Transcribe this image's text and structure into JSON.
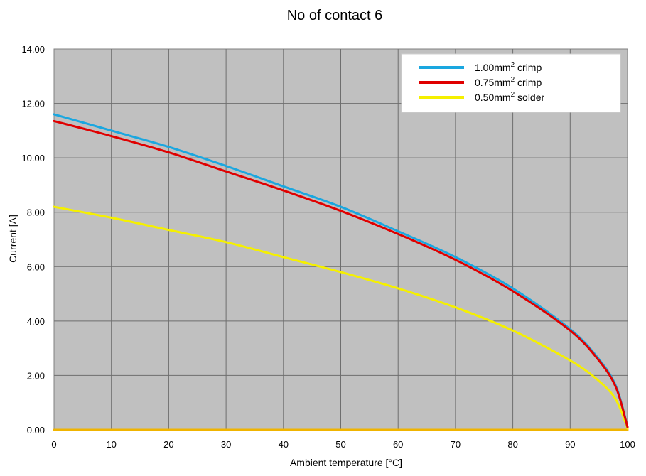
{
  "chart_data": {
    "type": "line",
    "title": "No of contact 6",
    "xlabel": "Ambient temperature [°C]",
    "ylabel": "Current [A]",
    "xlim": [
      0,
      100
    ],
    "ylim": [
      0,
      14
    ],
    "x_ticks": [
      "0",
      "10",
      "20",
      "30",
      "40",
      "50",
      "60",
      "70",
      "80",
      "90",
      "100"
    ],
    "y_ticks": [
      "0.00",
      "2.00",
      "4.00",
      "6.00",
      "8.00",
      "10.00",
      "12.00",
      "14.00"
    ],
    "grid": true,
    "legend_position": "top-right",
    "plot_background": "#c0c0c0",
    "x": [
      0,
      10,
      20,
      30,
      40,
      50,
      60,
      70,
      80,
      90,
      95,
      98,
      100
    ],
    "series": [
      {
        "name": "1.00mm² crimp",
        "label_main": "1.00mm",
        "label_sup": "2",
        "label_rest": "crimp",
        "color": "#1aa7e0",
        "values": [
          11.6,
          11.0,
          10.4,
          9.7,
          8.95,
          8.2,
          7.3,
          6.35,
          5.2,
          3.7,
          2.6,
          1.6,
          0.1
        ]
      },
      {
        "name": "0.75mm² crimp",
        "label_main": "0.75mm",
        "label_sup": "2",
        "label_rest": "crimp",
        "color": "#e00000",
        "values": [
          11.35,
          10.8,
          10.2,
          9.5,
          8.8,
          8.05,
          7.2,
          6.25,
          5.1,
          3.65,
          2.55,
          1.55,
          0.1
        ]
      },
      {
        "name": "0.50mm² solder",
        "label_main": "0.50mm",
        "label_sup": "2",
        "label_rest": "solder",
        "color": "#f5f000",
        "values": [
          8.2,
          7.8,
          7.35,
          6.9,
          6.35,
          5.8,
          5.2,
          4.5,
          3.65,
          2.55,
          1.8,
          1.1,
          0.05
        ]
      },
      {
        "name": "",
        "color": "#f0b400",
        "values": [
          0,
          0,
          0,
          0,
          0,
          0,
          0,
          0,
          0,
          0,
          0,
          0,
          0
        ]
      }
    ]
  }
}
